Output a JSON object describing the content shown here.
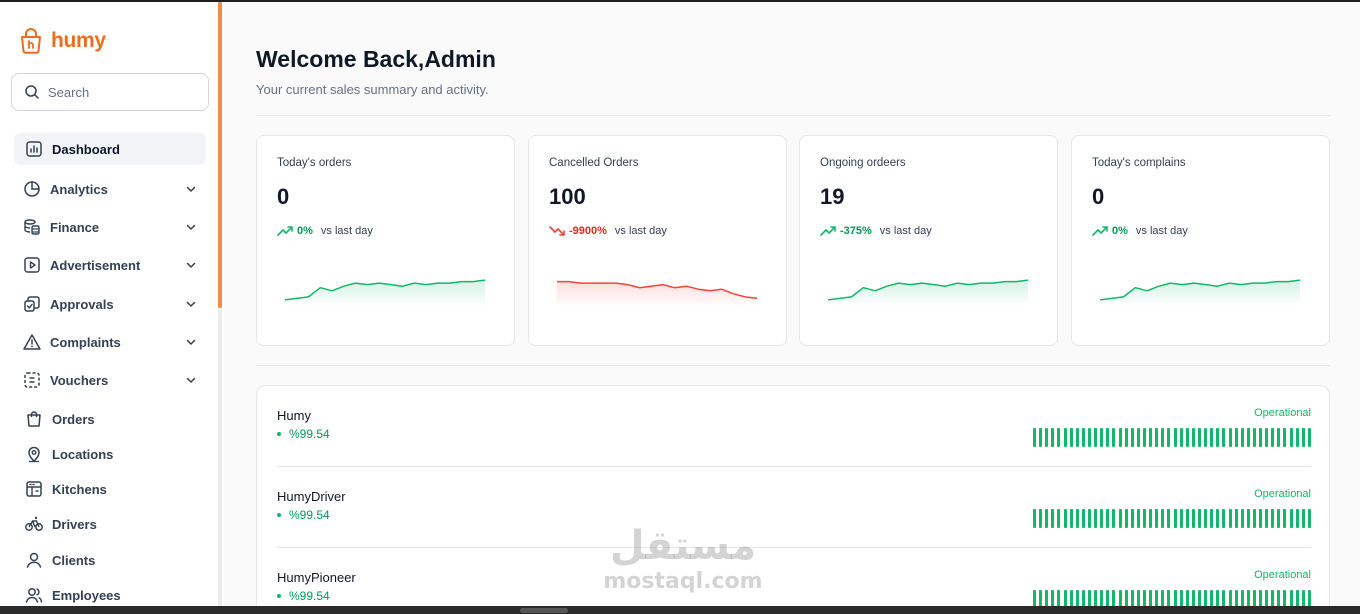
{
  "brand": {
    "name": "humy",
    "accent": "#f26a1b"
  },
  "search": {
    "placeholder": "Search"
  },
  "sidebar": {
    "items": [
      {
        "label": "Dashboard",
        "icon": "bar-chart-square-icon",
        "active": true,
        "expandable": false
      },
      {
        "label": "Analytics",
        "icon": "pie-chart-icon",
        "active": false,
        "expandable": true
      },
      {
        "label": "Finance",
        "icon": "coins-stack-icon",
        "active": false,
        "expandable": true
      },
      {
        "label": "Advertisement",
        "icon": "play-square-icon",
        "active": false,
        "expandable": true
      },
      {
        "label": "Approvals",
        "icon": "approval-icon",
        "active": false,
        "expandable": true
      },
      {
        "label": "Complaints",
        "icon": "warning-triangle-icon",
        "active": false,
        "expandable": true
      },
      {
        "label": "Vouchers",
        "icon": "voucher-icon",
        "active": false,
        "expandable": true
      },
      {
        "label": "Orders",
        "icon": "shopping-bag-icon",
        "active": false,
        "expandable": false
      },
      {
        "label": "Locations",
        "icon": "map-pin-icon",
        "active": false,
        "expandable": false
      },
      {
        "label": "Kitchens",
        "icon": "kitchen-icon",
        "active": false,
        "expandable": false
      },
      {
        "label": "Drivers",
        "icon": "bicycle-icon",
        "active": false,
        "expandable": false
      },
      {
        "label": "Clients",
        "icon": "user-icon",
        "active": false,
        "expandable": false
      },
      {
        "label": "Employees",
        "icon": "users-icon",
        "active": false,
        "expandable": false
      }
    ]
  },
  "header": {
    "title": "Welcome Back,Admin",
    "subtitle": "Your current sales summary and activity."
  },
  "stats": [
    {
      "title": "Today's orders",
      "value": "0",
      "change": "0%",
      "direction": "up",
      "vs": "vs last day",
      "trend": [
        10,
        11,
        12,
        18,
        16,
        19,
        21,
        20,
        21,
        20,
        19,
        21,
        20,
        21,
        21,
        22,
        22,
        23
      ]
    },
    {
      "title": "Cancelled Orders",
      "value": "100",
      "change": "-9900%",
      "direction": "down",
      "vs": "vs last day",
      "trend": [
        22,
        22,
        21,
        21,
        21,
        21,
        20,
        18,
        19,
        20,
        18,
        19,
        17,
        16,
        17,
        14,
        12,
        11
      ]
    },
    {
      "title": "Ongoing ordeers",
      "value": "19",
      "change": "-375%",
      "direction": "up",
      "vs": "vs last day",
      "trend": [
        10,
        11,
        12,
        18,
        16,
        19,
        21,
        20,
        21,
        20,
        19,
        21,
        20,
        21,
        21,
        22,
        22,
        23
      ]
    },
    {
      "title": "Today's complains",
      "value": "0",
      "change": "0%",
      "direction": "up",
      "vs": "vs last day",
      "trend": [
        10,
        11,
        12,
        18,
        16,
        19,
        21,
        20,
        21,
        20,
        19,
        21,
        20,
        21,
        21,
        22,
        22,
        23
      ]
    }
  ],
  "services": [
    {
      "name": "Humy",
      "uptime": "%99.54",
      "status": "Operational"
    },
    {
      "name": "HumyDriver",
      "uptime": "%99.54",
      "status": "Operational"
    },
    {
      "name": "HumyPioneer",
      "uptime": "%99.54",
      "status": "Operational"
    }
  ],
  "watermark": {
    "arabic": "مستقل",
    "latin": "mostaql.com"
  },
  "colors": {
    "up": "#12b76a",
    "down": "#f04438",
    "border": "#e4e7ec"
  }
}
